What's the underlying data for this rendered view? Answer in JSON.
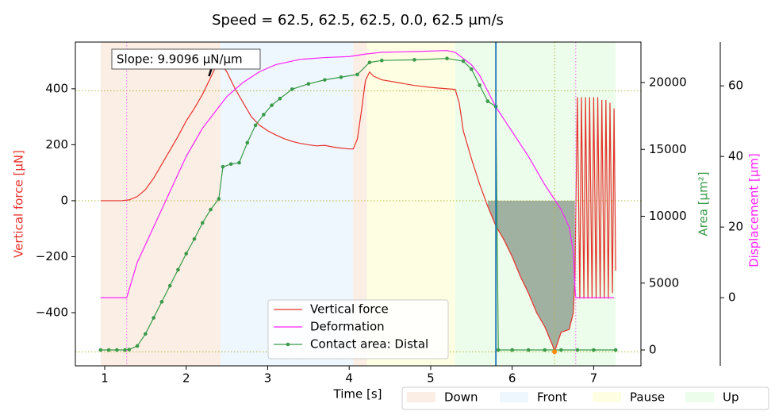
{
  "chart_data": {
    "type": "line",
    "title": "Speed = 62.5, 62.5, 62.5, 0.0, 62.5 μm/s",
    "xlabel": "Time [s]",
    "ylabel": "Vertical force [μN]",
    "y2label": "Area [$\\mu m^2$]",
    "y3label": "Displacement [μm]",
    "xlim": [
      0.64,
      7.58
    ],
    "xticks": [
      1,
      2,
      3,
      4,
      5,
      6,
      7
    ],
    "ylim": [
      -590,
      567
    ],
    "yticks": [
      {
        "value": -400,
        "label": "−400"
      },
      {
        "value": -200,
        "label": "−200"
      },
      0,
      200,
      400
    ],
    "y2lim": [
      -1187,
      23027
    ],
    "y2ticks": [
      0,
      5000,
      10000,
      15000,
      20000
    ],
    "y3lim": [
      -19.3,
      72.4
    ],
    "y3ticks": [
      0,
      20,
      40,
      60
    ],
    "phases": [
      {
        "name": "Down",
        "color": "#fbeee4"
      },
      {
        "name": "Front",
        "color": "#eef6fe"
      },
      {
        "name": "Pause",
        "color": "#fefee2"
      },
      {
        "name": "Up",
        "color": "#ecfdec"
      }
    ],
    "spans": [
      {
        "phase": 0,
        "start": 0.95,
        "end": 2.42
      },
      {
        "phase": 1,
        "start": 2.42,
        "end": 4.05
      },
      {
        "phase": 0,
        "start": 4.05,
        "end": 4.22
      },
      {
        "phase": 2,
        "start": 4.22,
        "end": 5.3
      },
      {
        "phase": 3,
        "start": 5.3,
        "end": 7.27
      }
    ],
    "annotation": "Slope: 9.9096 μN/μm",
    "slope_segment": {
      "x": [
        2.28,
        2.33
      ],
      "y": [
        445,
        490
      ]
    },
    "vlines": [
      {
        "x": 1.27,
        "color": "#ff66ff",
        "style": "dotted"
      },
      {
        "x": 6.78,
        "color": "#ff66ff",
        "style": "dotted"
      },
      {
        "x": 6.52,
        "color": "#b5b832",
        "style": "dotted"
      },
      {
        "x": 5.8,
        "color": "#1f77b4",
        "style": "solid"
      }
    ],
    "hlines": [
      {
        "y": 393,
        "color": "#b5b832"
      },
      {
        "y": 0,
        "color": "#b5b832"
      },
      {
        "y": -540,
        "color": "#b5b832"
      }
    ],
    "min_marker": {
      "x": 6.52,
      "y": -540,
      "color": "#ff8c00"
    },
    "fill_range": [
      5.67,
      6.77
    ],
    "fill_color": "#6f7f6f",
    "series": [
      {
        "name": "Vertical force",
        "color": "#e8312b",
        "axis": "y",
        "x": [
          0.95,
          1.0,
          1.1,
          1.2,
          1.3,
          1.4,
          1.5,
          1.6,
          1.7,
          1.8,
          1.9,
          2.0,
          2.1,
          2.2,
          2.3,
          2.38,
          2.45,
          2.5,
          2.6,
          2.7,
          2.8,
          2.9,
          3.0,
          3.1,
          3.2,
          3.3,
          3.4,
          3.5,
          3.6,
          3.7,
          3.8,
          3.9,
          4.0,
          4.05,
          4.1,
          4.15,
          4.2,
          4.25,
          4.3,
          4.4,
          4.6,
          4.8,
          5.0,
          5.2,
          5.3,
          5.35,
          5.4,
          5.5,
          5.6,
          5.7,
          5.8,
          5.9,
          6.0,
          6.1,
          6.2,
          6.3,
          6.4,
          6.5,
          6.52,
          6.6,
          6.7,
          6.75,
          6.77,
          6.8,
          6.83,
          6.85,
          6.88,
          6.9,
          6.93,
          6.95,
          6.98,
          7.0,
          7.03,
          7.05,
          7.08,
          7.1,
          7.13,
          7.15,
          7.18,
          7.2,
          7.23,
          7.25,
          7.27
        ],
        "values": [
          0,
          0,
          0,
          0,
          3,
          15,
          40,
          80,
          130,
          180,
          230,
          285,
          330,
          380,
          440,
          490,
          480,
          460,
          400,
          350,
          300,
          270,
          250,
          235,
          222,
          212,
          205,
          200,
          196,
          198,
          192,
          188,
          185,
          185,
          220,
          320,
          430,
          460,
          445,
          432,
          422,
          412,
          405,
          400,
          398,
          350,
          250,
          150,
          60,
          -20,
          -90,
          -140,
          -200,
          -270,
          -330,
          -400,
          -450,
          -520,
          -540,
          -470,
          -460,
          -400,
          -280,
          370,
          -350,
          370,
          -350,
          370,
          -350,
          370,
          -350,
          370,
          -350,
          370,
          -350,
          360,
          -350,
          360,
          -350,
          350,
          -330,
          330,
          -250
        ]
      },
      {
        "name": "Deformation",
        "color": "#ff22ff",
        "axis": "y3",
        "x": [
          0.95,
          1.27,
          1.4,
          1.6,
          1.8,
          2.0,
          2.2,
          2.4,
          2.5,
          2.7,
          2.9,
          3.1,
          3.4,
          3.7,
          4.0,
          4.2,
          4.4,
          4.8,
          5.2,
          5.3,
          5.5,
          5.6,
          5.8,
          6.0,
          6.2,
          6.4,
          6.6,
          6.7,
          6.75,
          6.77,
          6.78,
          7.25
        ],
        "values": [
          0,
          0,
          10,
          20,
          30,
          40,
          48,
          54,
          57,
          61,
          64,
          66,
          67.5,
          68,
          68.3,
          69,
          69.5,
          69.7,
          70,
          69.5,
          66,
          63,
          54,
          47,
          40,
          32,
          25,
          20,
          13,
          3,
          0,
          0
        ]
      },
      {
        "name": "Contact area: Distal",
        "color": "#3a9a4a",
        "axis": "y2",
        "markers": true,
        "x": [
          0.95,
          1.05,
          1.15,
          1.25,
          1.3,
          1.4,
          1.5,
          1.6,
          1.7,
          1.8,
          1.9,
          2.0,
          2.1,
          2.2,
          2.3,
          2.4,
          2.45,
          2.55,
          2.65,
          2.75,
          2.85,
          2.95,
          3.05,
          3.15,
          3.3,
          3.5,
          3.7,
          3.9,
          4.1,
          4.25,
          4.4,
          4.8,
          5.2,
          5.4,
          5.5,
          5.6,
          5.7,
          5.8,
          5.83,
          6.0,
          6.2,
          6.4,
          6.6,
          6.8,
          7.0,
          7.27
        ],
        "values": [
          0,
          0,
          0,
          0,
          30,
          300,
          1200,
          2400,
          3600,
          4800,
          6000,
          7200,
          8300,
          9500,
          10500,
          11300,
          13700,
          13900,
          14000,
          15500,
          16800,
          17600,
          18300,
          18800,
          19500,
          19900,
          20200,
          20400,
          20600,
          21500,
          21650,
          21700,
          21800,
          21600,
          21000,
          19800,
          18600,
          18200,
          0,
          0,
          0,
          0,
          0,
          0,
          0,
          0
        ]
      }
    ]
  }
}
